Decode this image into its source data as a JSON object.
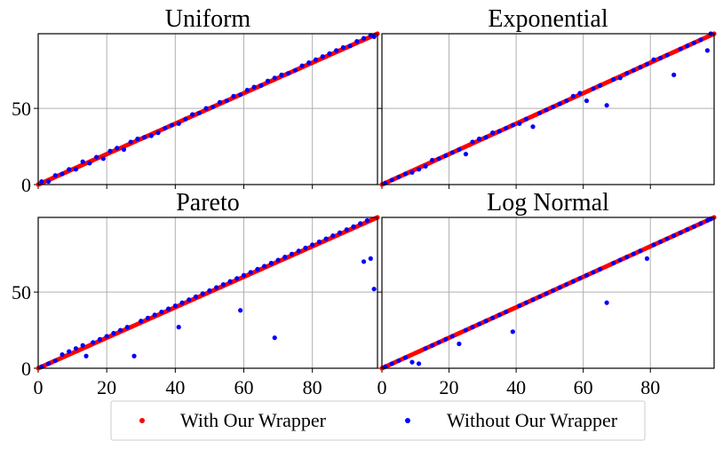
{
  "chart_data": [
    {
      "type": "scatter",
      "title": "Uniform",
      "xlim": [
        0,
        99
      ],
      "ylim": [
        0,
        99
      ],
      "xticks": [
        "0",
        "20",
        "40",
        "60",
        "80"
      ],
      "yticks": [
        "0",
        "50"
      ],
      "grid": true,
      "series": [
        {
          "name": "With Our Wrapper",
          "color": "#ff0000",
          "points": "diagonal y=x, x=0..99"
        },
        {
          "name": "Without Our Wrapper",
          "color": "#0000ff",
          "points": [
            [
              1,
              2
            ],
            [
              3,
              2
            ],
            [
              5,
              6
            ],
            [
              7,
              7
            ],
            [
              9,
              10
            ],
            [
              11,
              10
            ],
            [
              13,
              15
            ],
            [
              15,
              14
            ],
            [
              17,
              18
            ],
            [
              19,
              17
            ],
            [
              21,
              22
            ],
            [
              23,
              24
            ],
            [
              25,
              23
            ],
            [
              27,
              28
            ],
            [
              29,
              30
            ],
            [
              31,
              31
            ],
            [
              33,
              32
            ],
            [
              35,
              34
            ],
            [
              37,
              37
            ],
            [
              39,
              39
            ],
            [
              41,
              40
            ],
            [
              43,
              43
            ],
            [
              45,
              46
            ],
            [
              47,
              47
            ],
            [
              49,
              50
            ],
            [
              51,
              51
            ],
            [
              53,
              54
            ],
            [
              55,
              55
            ],
            [
              57,
              58
            ],
            [
              59,
              59
            ],
            [
              61,
              62
            ],
            [
              63,
              64
            ],
            [
              65,
              65
            ],
            [
              67,
              68
            ],
            [
              69,
              70
            ],
            [
              71,
              72
            ],
            [
              73,
              73
            ],
            [
              75,
              75
            ],
            [
              77,
              78
            ],
            [
              79,
              80
            ],
            [
              81,
              82
            ],
            [
              83,
              84
            ],
            [
              85,
              86
            ],
            [
              87,
              88
            ],
            [
              89,
              90
            ],
            [
              91,
              91
            ],
            [
              93,
              94
            ],
            [
              95,
              96
            ],
            [
              97,
              98
            ],
            [
              98,
              97
            ]
          ]
        }
      ]
    },
    {
      "type": "scatter",
      "title": "Exponential",
      "xlim": [
        0,
        99
      ],
      "ylim": [
        0,
        99
      ],
      "xticks": [
        "0",
        "20",
        "40",
        "60",
        "80"
      ],
      "yticks": [
        "0",
        "50"
      ],
      "grid": true,
      "series": [
        {
          "name": "With Our Wrapper",
          "color": "#ff0000",
          "points": "diagonal y=x, x=0..99"
        },
        {
          "name": "Without Our Wrapper",
          "color": "#0000ff",
          "points": [
            [
              1,
              1
            ],
            [
              3,
              3
            ],
            [
              5,
              5
            ],
            [
              7,
              7
            ],
            [
              9,
              8
            ],
            [
              11,
              10
            ],
            [
              13,
              12
            ],
            [
              15,
              16
            ],
            [
              17,
              17
            ],
            [
              19,
              19
            ],
            [
              21,
              21
            ],
            [
              23,
              23
            ],
            [
              25,
              20
            ],
            [
              27,
              28
            ],
            [
              29,
              30
            ],
            [
              31,
              31
            ],
            [
              33,
              34
            ],
            [
              35,
              35
            ],
            [
              37,
              37
            ],
            [
              39,
              39
            ],
            [
              41,
              40
            ],
            [
              43,
              43
            ],
            [
              45,
              38
            ],
            [
              47,
              47
            ],
            [
              49,
              49
            ],
            [
              51,
              51
            ],
            [
              53,
              53
            ],
            [
              55,
              55
            ],
            [
              57,
              58
            ],
            [
              59,
              60
            ],
            [
              61,
              55
            ],
            [
              63,
              63
            ],
            [
              65,
              65
            ],
            [
              67,
              52
            ],
            [
              69,
              69
            ],
            [
              71,
              70
            ],
            [
              73,
              73
            ],
            [
              75,
              75
            ],
            [
              77,
              77
            ],
            [
              79,
              79
            ],
            [
              81,
              82
            ],
            [
              83,
              83
            ],
            [
              85,
              85
            ],
            [
              87,
              72
            ],
            [
              89,
              89
            ],
            [
              91,
              91
            ],
            [
              93,
              93
            ],
            [
              95,
              95
            ],
            [
              97,
              88
            ],
            [
              98,
              99
            ]
          ]
        }
      ]
    },
    {
      "type": "scatter",
      "title": "Pareto",
      "xlim": [
        0,
        99
      ],
      "ylim": [
        0,
        99
      ],
      "xticks": [
        "0",
        "20",
        "40",
        "60",
        "80"
      ],
      "yticks": [
        "0",
        "50"
      ],
      "grid": true,
      "series": [
        {
          "name": "With Our Wrapper",
          "color": "#ff0000",
          "points": "diagonal y=x, x=0..99"
        },
        {
          "name": "Without Our Wrapper",
          "color": "#0000ff",
          "points": [
            [
              1,
              1
            ],
            [
              3,
              3
            ],
            [
              5,
              5
            ],
            [
              7,
              9
            ],
            [
              9,
              11
            ],
            [
              11,
              13
            ],
            [
              13,
              15
            ],
            [
              14,
              8
            ],
            [
              16,
              17
            ],
            [
              18,
              19
            ],
            [
              20,
              21
            ],
            [
              22,
              23
            ],
            [
              24,
              25
            ],
            [
              26,
              27
            ],
            [
              28,
              8
            ],
            [
              30,
              31
            ],
            [
              32,
              33
            ],
            [
              34,
              35
            ],
            [
              36,
              37
            ],
            [
              38,
              39
            ],
            [
              40,
              41
            ],
            [
              41,
              27
            ],
            [
              42,
              43
            ],
            [
              44,
              45
            ],
            [
              46,
              47
            ],
            [
              48,
              49
            ],
            [
              50,
              51
            ],
            [
              52,
              53
            ],
            [
              54,
              55
            ],
            [
              56,
              57
            ],
            [
              58,
              59
            ],
            [
              59,
              38
            ],
            [
              60,
              61
            ],
            [
              62,
              63
            ],
            [
              64,
              65
            ],
            [
              66,
              67
            ],
            [
              68,
              69
            ],
            [
              69,
              20
            ],
            [
              70,
              71
            ],
            [
              72,
              73
            ],
            [
              74,
              75
            ],
            [
              76,
              77
            ],
            [
              78,
              79
            ],
            [
              80,
              81
            ],
            [
              82,
              83
            ],
            [
              84,
              85
            ],
            [
              86,
              87
            ],
            [
              88,
              89
            ],
            [
              90,
              91
            ],
            [
              92,
              93
            ],
            [
              94,
              95
            ],
            [
              95,
              70
            ],
            [
              96,
              97
            ],
            [
              97,
              72
            ],
            [
              98,
              52
            ]
          ]
        }
      ]
    },
    {
      "type": "scatter",
      "title": "Log Normal",
      "xlim": [
        0,
        99
      ],
      "ylim": [
        0,
        99
      ],
      "xticks": [
        "0",
        "20",
        "40",
        "60",
        "80"
      ],
      "yticks": [
        "0",
        "50"
      ],
      "grid": true,
      "series": [
        {
          "name": "With Our Wrapper",
          "color": "#ff0000",
          "points": "diagonal y=x, x=0..99"
        },
        {
          "name": "Without Our Wrapper",
          "color": "#0000ff",
          "points": [
            [
              1,
              1
            ],
            [
              3,
              3
            ],
            [
              5,
              5
            ],
            [
              7,
              7
            ],
            [
              9,
              4
            ],
            [
              11,
              3
            ],
            [
              13,
              13
            ],
            [
              15,
              15
            ],
            [
              17,
              17
            ],
            [
              19,
              19
            ],
            [
              21,
              21
            ],
            [
              23,
              16
            ],
            [
              25,
              25
            ],
            [
              27,
              27
            ],
            [
              29,
              29
            ],
            [
              31,
              31
            ],
            [
              33,
              33
            ],
            [
              35,
              35
            ],
            [
              37,
              37
            ],
            [
              39,
              24
            ],
            [
              41,
              41
            ],
            [
              43,
              43
            ],
            [
              45,
              45
            ],
            [
              47,
              47
            ],
            [
              49,
              49
            ],
            [
              51,
              51
            ],
            [
              53,
              53
            ],
            [
              55,
              55
            ],
            [
              57,
              57
            ],
            [
              59,
              59
            ],
            [
              61,
              61
            ],
            [
              63,
              63
            ],
            [
              65,
              65
            ],
            [
              67,
              43
            ],
            [
              69,
              69
            ],
            [
              71,
              71
            ],
            [
              73,
              73
            ],
            [
              75,
              75
            ],
            [
              77,
              77
            ],
            [
              79,
              72
            ],
            [
              81,
              81
            ],
            [
              83,
              83
            ],
            [
              85,
              85
            ],
            [
              87,
              87
            ],
            [
              89,
              89
            ],
            [
              91,
              91
            ],
            [
              93,
              93
            ],
            [
              95,
              95
            ],
            [
              97,
              97
            ],
            [
              98,
              98
            ]
          ]
        }
      ]
    }
  ],
  "legend": {
    "entries": [
      {
        "label": "With Our Wrapper",
        "color": "#ff0000"
      },
      {
        "label": "Without Our Wrapper",
        "color": "#0000ff"
      }
    ],
    "placement": "bottom-center"
  }
}
